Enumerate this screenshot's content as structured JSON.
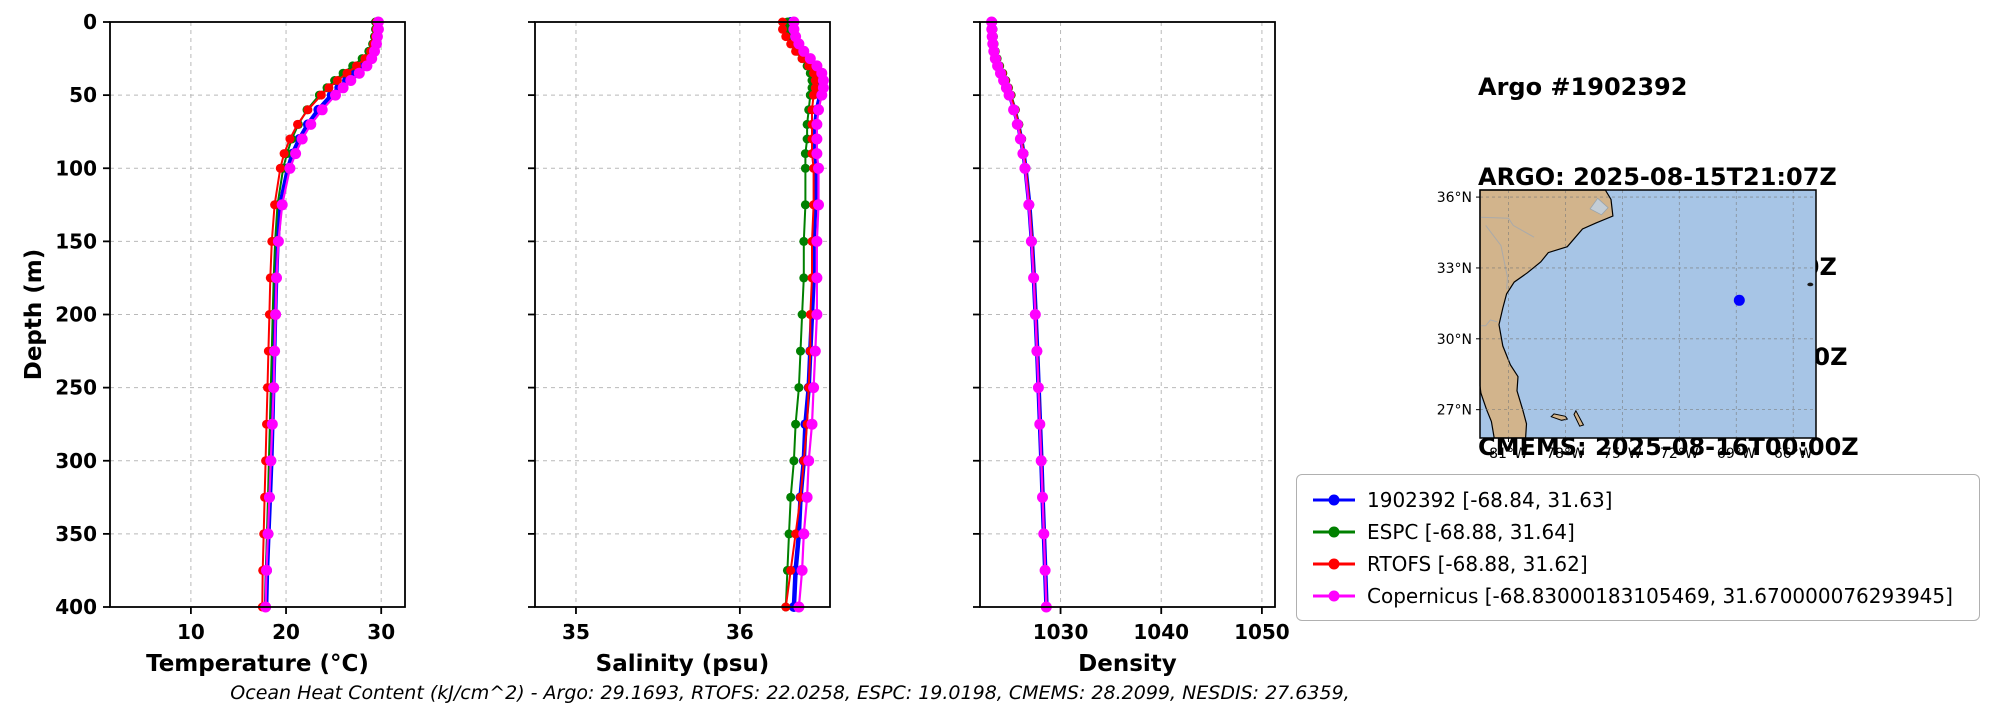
{
  "info": {
    "lines": [
      "Argo #1902392",
      "ARGO: 2025-08-15T21:07Z",
      "ESPC : 2025-08-15T21:00Z",
      "RTOFS: 2025-08-16T00:00Z",
      "CMEMS: 2025-08-16T00:00Z"
    ]
  },
  "legend": {
    "items": [
      {
        "label": "1902392 [-68.84, 31.63]",
        "color": "#0000ff"
      },
      {
        "label": "ESPC [-68.88, 31.64]",
        "color": "#008000"
      },
      {
        "label": "RTOFS [-68.88, 31.62]",
        "color": "#ff0000"
      },
      {
        "label": "Copernicus [-68.83000183105469, 31.670000076293945]",
        "color": "#ff00ff"
      }
    ]
  },
  "footer": {
    "text": "Ocean Heat Content (kJ/cm^2) - Argo: 29.1693,  RTOFS: 22.0258,  ESPC: 19.0198,  CMEMS: 28.2099,  NESDIS: 27.6359,"
  },
  "map": {
    "lon_ticks": [
      "81°W",
      "78°W",
      "75°W",
      "72°W",
      "69°W",
      "66°W"
    ],
    "lon_tick_values": [
      -81,
      -78,
      -75,
      -72,
      -69,
      -66
    ],
    "lat_ticks": [
      "36°N",
      "33°N",
      "30°N",
      "27°N"
    ],
    "lat_tick_values": [
      36,
      33,
      30,
      27
    ],
    "extent": {
      "lon_min": -82.5,
      "lon_max": -64.8,
      "lat_min": 25.8,
      "lat_max": 36.3
    },
    "marker": {
      "lon": -68.84,
      "lat": 31.63,
      "color": "#0000ff"
    },
    "land_color": "#d2b48c",
    "ocean_color": "#a7c5e6",
    "border_color": "#000000"
  },
  "chart_data": [
    {
      "type": "line",
      "xlabel": "Temperature (°C)",
      "ylabel": "Depth (m)",
      "xlim": [
        1.5,
        32.5
      ],
      "xticks": [
        10,
        20,
        30
      ],
      "ylim": [
        0,
        400
      ],
      "yticks": [
        0,
        50,
        100,
        150,
        200,
        250,
        300,
        350,
        400
      ],
      "y_inverted": true,
      "grid": true,
      "show_y_tick_labels": true,
      "depths": [
        0,
        5,
        10,
        15,
        20,
        25,
        30,
        35,
        40,
        45,
        50,
        60,
        70,
        80,
        90,
        100,
        125,
        150,
        175,
        200,
        225,
        250,
        275,
        300,
        325,
        350,
        375,
        400
      ],
      "series": [
        {
          "name": "1902392",
          "color": "#0000ff",
          "lw": 4.5,
          "marker_r": 5,
          "values": [
            29.6,
            29.6,
            29.5,
            29.4,
            29.2,
            28.8,
            28.2,
            27.3,
            26.4,
            25.6,
            24.8,
            23.4,
            22.3,
            21.4,
            20.7,
            20.2,
            19.4,
            19.1,
            18.95,
            18.85,
            18.75,
            18.65,
            18.55,
            18.45,
            18.3,
            18.15,
            18.0,
            17.9
          ]
        },
        {
          "name": "ESPC",
          "color": "#008000",
          "lw": 2,
          "marker_r": 4.5,
          "values": [
            29.4,
            29.4,
            29.3,
            29.1,
            28.7,
            28.0,
            27.0,
            26.0,
            25.1,
            24.3,
            23.5,
            22.2,
            21.3,
            20.6,
            20.1,
            19.7,
            19.1,
            18.85,
            18.7,
            18.6,
            18.5,
            18.4,
            18.3,
            18.2,
            18.1,
            18.0,
            17.9,
            17.8
          ]
        },
        {
          "name": "RTOFS",
          "color": "#ff0000",
          "lw": 2,
          "marker_r": 4.5,
          "values": [
            29.5,
            29.5,
            29.4,
            29.2,
            28.9,
            28.3,
            27.4,
            26.4,
            25.4,
            24.5,
            23.7,
            22.3,
            21.2,
            20.4,
            19.8,
            19.4,
            18.8,
            18.5,
            18.35,
            18.25,
            18.15,
            18.05,
            17.95,
            17.85,
            17.75,
            17.65,
            17.55,
            17.5
          ]
        },
        {
          "name": "Copernicus",
          "color": "#ff00ff",
          "lw": 2.2,
          "marker_r": 5.5,
          "values": [
            29.7,
            29.7,
            29.6,
            29.5,
            29.3,
            29.0,
            28.5,
            27.7,
            26.8,
            26.0,
            25.2,
            23.8,
            22.6,
            21.7,
            21.0,
            20.4,
            19.6,
            19.2,
            19.0,
            18.9,
            18.8,
            18.7,
            18.55,
            18.4,
            18.25,
            18.1,
            17.95,
            17.85
          ]
        }
      ]
    },
    {
      "type": "line",
      "xlabel": "Salinity (psu)",
      "ylabel": "",
      "xlim": [
        34.75,
        36.55
      ],
      "xticks": [
        35,
        36
      ],
      "ylim": [
        0,
        400
      ],
      "yticks": [
        0,
        50,
        100,
        150,
        200,
        250,
        300,
        350,
        400
      ],
      "y_inverted": true,
      "grid": true,
      "show_y_tick_labels": false,
      "depths": [
        0,
        5,
        10,
        15,
        20,
        25,
        30,
        35,
        40,
        45,
        50,
        60,
        70,
        80,
        90,
        100,
        125,
        150,
        175,
        200,
        225,
        250,
        275,
        300,
        325,
        350,
        375,
        400
      ],
      "series": [
        {
          "name": "1902392",
          "color": "#0000ff",
          "lw": 4.5,
          "marker_r": 5,
          "values": [
            36.31,
            36.31,
            36.32,
            36.34,
            36.37,
            36.41,
            36.45,
            36.48,
            36.5,
            36.5,
            36.49,
            36.47,
            36.46,
            36.46,
            36.46,
            36.47,
            36.46,
            36.45,
            36.45,
            36.44,
            36.43,
            36.42,
            36.4,
            36.39,
            36.37,
            36.36,
            36.34,
            36.33
          ]
        },
        {
          "name": "ESPC",
          "color": "#008000",
          "lw": 2,
          "marker_r": 4.5,
          "values": [
            36.29,
            36.29,
            36.3,
            36.32,
            36.35,
            36.38,
            36.41,
            36.43,
            36.44,
            36.44,
            36.43,
            36.42,
            36.41,
            36.41,
            36.4,
            36.4,
            36.4,
            36.39,
            36.39,
            36.38,
            36.37,
            36.36,
            36.34,
            36.33,
            36.31,
            36.3,
            36.29,
            36.28
          ]
        },
        {
          "name": "RTOFS",
          "color": "#ff0000",
          "lw": 2,
          "marker_r": 4.5,
          "values": [
            36.26,
            36.26,
            36.28,
            36.31,
            36.34,
            36.38,
            36.42,
            36.45,
            36.46,
            36.46,
            36.45,
            36.44,
            36.44,
            36.44,
            36.44,
            36.45,
            36.45,
            36.44,
            36.44,
            36.43,
            36.43,
            36.42,
            36.41,
            36.39,
            36.37,
            36.34,
            36.31,
            36.28
          ]
        },
        {
          "name": "Copernicus",
          "color": "#ff00ff",
          "lw": 2.2,
          "marker_r": 5.5,
          "values": [
            36.33,
            36.33,
            36.34,
            36.36,
            36.39,
            36.43,
            36.47,
            36.5,
            36.51,
            36.51,
            36.5,
            36.48,
            36.47,
            36.47,
            36.47,
            36.48,
            36.48,
            36.47,
            36.47,
            36.47,
            36.46,
            36.45,
            36.44,
            36.42,
            36.41,
            36.39,
            36.38,
            36.36
          ]
        }
      ]
    },
    {
      "type": "line",
      "xlabel": "Density",
      "ylabel": "",
      "xlim": [
        1022,
        1051.3
      ],
      "xticks": [
        1030,
        1040,
        1050
      ],
      "ylim": [
        0,
        400
      ],
      "yticks": [
        0,
        50,
        100,
        150,
        200,
        250,
        300,
        350,
        400
      ],
      "y_inverted": true,
      "grid": true,
      "show_y_tick_labels": false,
      "depths": [
        0,
        5,
        10,
        15,
        20,
        25,
        30,
        35,
        40,
        45,
        50,
        60,
        70,
        80,
        90,
        100,
        125,
        150,
        175,
        200,
        225,
        250,
        275,
        300,
        325,
        350,
        375,
        400
      ],
      "series": [
        {
          "name": "1902392",
          "color": "#0000ff",
          "lw": 4.5,
          "marker_r": 5,
          "values": [
            1023.2,
            1023.22,
            1023.26,
            1023.32,
            1023.42,
            1023.58,
            1023.82,
            1024.12,
            1024.42,
            1024.7,
            1024.97,
            1025.42,
            1025.78,
            1026.08,
            1026.32,
            1026.52,
            1026.9,
            1027.15,
            1027.35,
            1027.52,
            1027.68,
            1027.82,
            1027.96,
            1028.1,
            1028.22,
            1028.35,
            1028.48,
            1028.6
          ]
        },
        {
          "name": "ESPC",
          "color": "#008000",
          "lw": 2,
          "marker_r": 4.5,
          "values": [
            1023.27,
            1023.29,
            1023.33,
            1023.4,
            1023.52,
            1023.7,
            1023.96,
            1024.26,
            1024.56,
            1024.83,
            1025.09,
            1025.52,
            1025.86,
            1026.14,
            1026.37,
            1026.56,
            1026.93,
            1027.17,
            1027.37,
            1027.53,
            1027.69,
            1027.83,
            1027.97,
            1028.1,
            1028.23,
            1028.36,
            1028.48,
            1028.6
          ]
        },
        {
          "name": "RTOFS",
          "color": "#ff0000",
          "lw": 2,
          "marker_r": 4.5,
          "values": [
            1023.24,
            1023.26,
            1023.3,
            1023.37,
            1023.48,
            1023.65,
            1023.9,
            1024.2,
            1024.5,
            1024.78,
            1025.04,
            1025.48,
            1025.83,
            1026.12,
            1026.35,
            1026.55,
            1026.92,
            1027.17,
            1027.36,
            1027.53,
            1027.69,
            1027.83,
            1027.97,
            1028.11,
            1028.24,
            1028.36,
            1028.49,
            1028.61
          ]
        },
        {
          "name": "Copernicus",
          "color": "#ff00ff",
          "lw": 2.2,
          "marker_r": 5.5,
          "values": [
            1023.15,
            1023.17,
            1023.21,
            1023.27,
            1023.37,
            1023.52,
            1023.75,
            1024.04,
            1024.34,
            1024.62,
            1024.89,
            1025.34,
            1025.7,
            1026.01,
            1026.26,
            1026.46,
            1026.85,
            1027.11,
            1027.32,
            1027.49,
            1027.65,
            1027.8,
            1027.94,
            1028.08,
            1028.21,
            1028.34,
            1028.47,
            1028.59
          ]
        }
      ]
    }
  ]
}
